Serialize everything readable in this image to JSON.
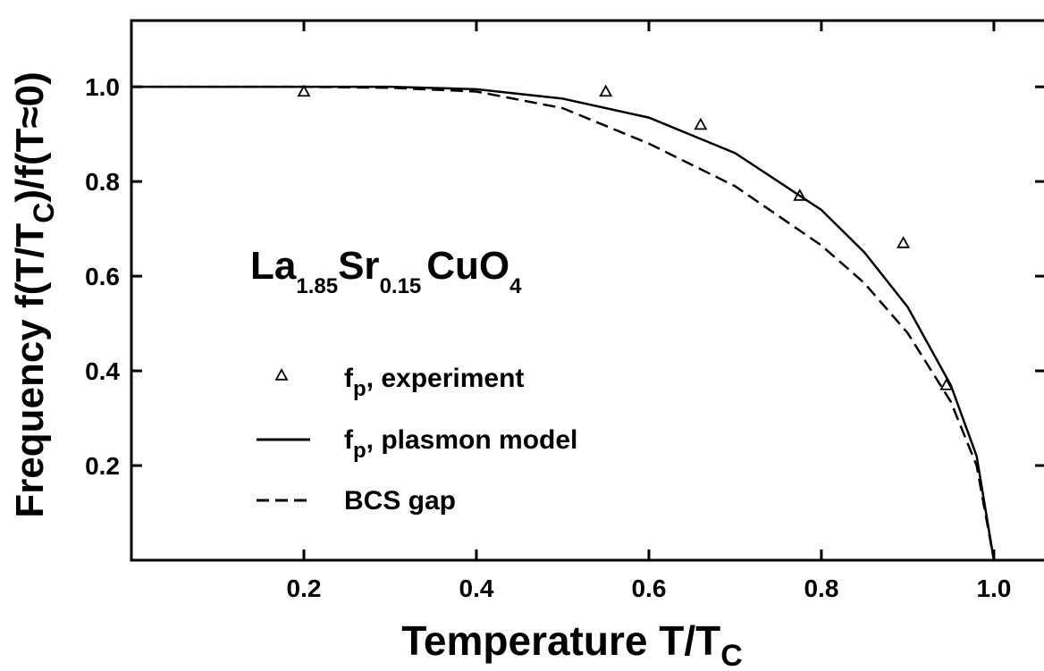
{
  "chart_data": {
    "type": "line",
    "ylabel": [
      "Frequency  f(T/T",
      "C",
      ")/f(T≈0)"
    ],
    "xlabel": [
      "Temperature  T/T",
      "C"
    ],
    "annotation": [
      "La",
      "1.85",
      "Sr",
      "0.15",
      "CuO",
      "4"
    ],
    "xlim": [
      0,
      1.055
    ],
    "ylim": [
      0,
      1.14
    ],
    "xticks": [
      0.2,
      0.4,
      0.6,
      0.8,
      {
        "value": 1,
        "label": "1.0"
      }
    ],
    "yticks": [
      0.2,
      0.4,
      0.6,
      0.8,
      {
        "value": 1,
        "label": "1.0"
      }
    ],
    "grid": false,
    "series": [
      {
        "name": [
          "f",
          "p",
          ", experiment"
        ],
        "kind": "scatter",
        "marker": "triangle",
        "color": "#000000",
        "x": [
          0.2,
          0.55,
          0.66,
          0.775,
          0.895,
          0.945
        ],
        "values": [
          0.99,
          0.99,
          0.92,
          0.77,
          0.67,
          0.37
        ]
      },
      {
        "name": [
          "f",
          "p",
          ", plasmon model"
        ],
        "kind": "line",
        "dash": "solid",
        "color": "#000000",
        "x": [
          0,
          0.1,
          0.2,
          0.3,
          0.4,
          0.5,
          0.6,
          0.7,
          0.8,
          0.85,
          0.9,
          0.95,
          0.98,
          1.0
        ],
        "values": [
          1,
          1,
          1,
          1,
          0.995,
          0.975,
          0.935,
          0.86,
          0.74,
          0.65,
          0.535,
          0.37,
          0.22,
          0
        ]
      },
      {
        "name": [
          "BCS gap"
        ],
        "kind": "line",
        "dash": "dashed",
        "color": "#000000",
        "x": [
          0,
          0.1,
          0.2,
          0.3,
          0.4,
          0.5,
          0.6,
          0.7,
          0.8,
          0.85,
          0.9,
          0.95,
          0.98,
          1.0
        ],
        "values": [
          1,
          1,
          1,
          0.998,
          0.99,
          0.955,
          0.88,
          0.79,
          0.665,
          0.585,
          0.48,
          0.335,
          0.2,
          0
        ]
      }
    ]
  }
}
